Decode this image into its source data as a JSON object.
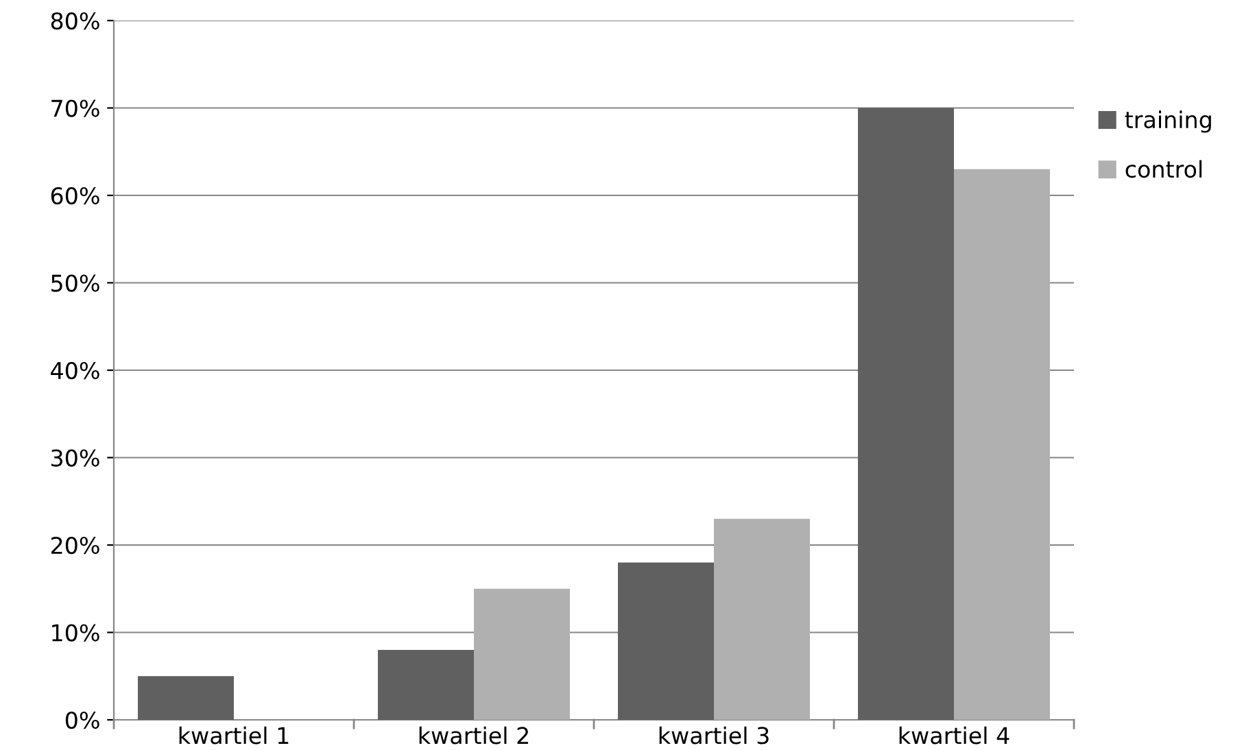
{
  "chart_data": {
    "type": "bar",
    "categories": [
      "kwartiel 1",
      "kwartiel 2",
      "kwartiel 3",
      "kwartiel 4"
    ],
    "series": [
      {
        "name": "training",
        "color": "#606060",
        "values": [
          5,
          8,
          18,
          70
        ]
      },
      {
        "name": "control",
        "color": "#b0b0b0",
        "values": [
          0,
          15,
          23,
          63
        ]
      }
    ],
    "ylim": [
      0,
      80
    ],
    "yticks": [
      {
        "value": 0,
        "label": "0%"
      },
      {
        "value": 10,
        "label": "10%"
      },
      {
        "value": 20,
        "label": "20%"
      },
      {
        "value": 30,
        "label": "30%"
      },
      {
        "value": 40,
        "label": "40%"
      },
      {
        "value": 50,
        "label": "50%"
      },
      {
        "value": 60,
        "label": "60%"
      },
      {
        "value": 70,
        "label": "70%"
      },
      {
        "value": 80,
        "label": "80%"
      }
    ],
    "grid": "y",
    "legend": "right"
  }
}
